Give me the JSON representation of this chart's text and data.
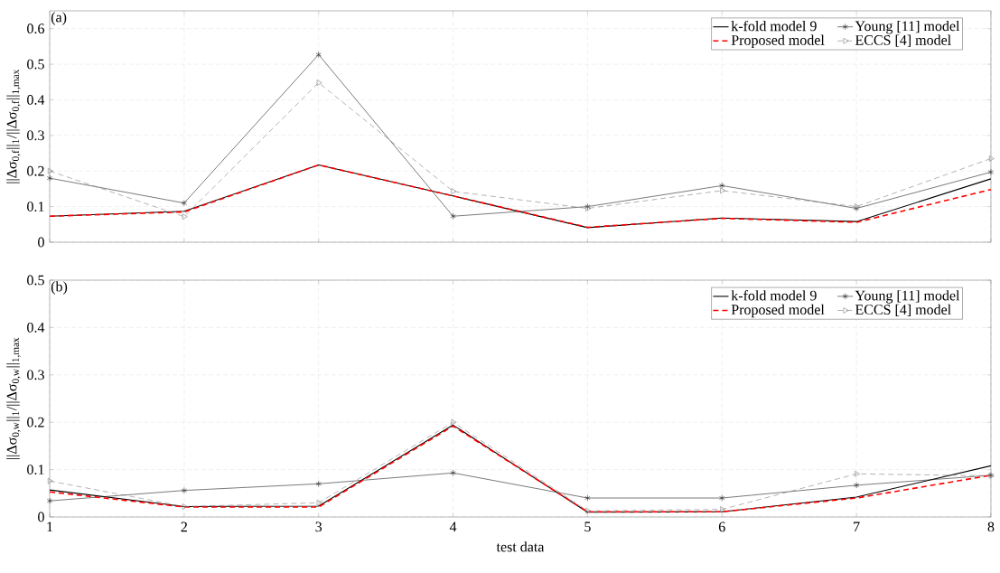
{
  "chart_data": [
    {
      "type": "line",
      "ylabel": "||Δσ$_{0,f}$||$_{1}$/||Δσ$_{0,f}$||$_{1,max}$",
      "annotations": [
        "(a)"
      ],
      "x": [
        1,
        2,
        3,
        4,
        5,
        6,
        7,
        8
      ],
      "xlim": [
        1,
        8
      ],
      "xticks": [
        1,
        2,
        3,
        4,
        5,
        6,
        7,
        8
      ],
      "ylim": [
        0,
        0.65
      ],
      "yticks": [
        0,
        0.1,
        0.2,
        0.3,
        0.4,
        0.5,
        0.6
      ],
      "tick_labels": "y",
      "grid": true,
      "legend": "top right",
      "series": [
        {
          "name": "k-fold model 9",
          "color": "#000000",
          "marker": "none",
          "line_style": "solid",
          "values": [
            0.073,
            0.087,
            0.217,
            0.13,
            0.041,
            0.068,
            0.058,
            0.178
          ]
        },
        {
          "name": "Young [11] model",
          "color": "#222222",
          "marker": "cross",
          "line_style": "solid",
          "values": [
            0.18,
            0.11,
            0.527,
            0.073,
            0.1,
            0.159,
            0.095,
            0.197
          ]
        },
        {
          "name": "Proposed model",
          "color": "#ff0000",
          "marker": "none",
          "line_style": "dashed",
          "values": [
            0.073,
            0.085,
            0.217,
            0.13,
            0.042,
            0.067,
            0.056,
            0.148
          ]
        },
        {
          "name": "ECCS [4] model",
          "color": "#808080",
          "marker": "triangle",
          "line_style": "dashed",
          "values": [
            0.2,
            0.072,
            0.448,
            0.143,
            0.095,
            0.145,
            0.1,
            0.235
          ]
        }
      ]
    },
    {
      "type": "line",
      "xlabel": "test data",
      "ylabel": "||Δσ$_{0,w}$||$_{1}$/||Δσ$_{0,w}$||$_{1,max}$",
      "annotations": [
        "(b)"
      ],
      "x": [
        1,
        2,
        3,
        4,
        5,
        6,
        7,
        8
      ],
      "xlim": [
        1,
        8
      ],
      "xticks": [
        1,
        2,
        3,
        4,
        5,
        6,
        7,
        8
      ],
      "ylim": [
        0,
        0.5
      ],
      "yticks": [
        0,
        0.1,
        0.2,
        0.3,
        0.4,
        0.5
      ],
      "grid": true,
      "legend": "top right",
      "series": [
        {
          "name": "k-fold model 9",
          "color": "#000000",
          "marker": "none",
          "line_style": "solid",
          "values": [
            0.057,
            0.022,
            0.023,
            0.194,
            0.01,
            0.011,
            0.042,
            0.108
          ]
        },
        {
          "name": "Young [11] model",
          "color": "#222222",
          "marker": "cross",
          "line_style": "solid",
          "values": [
            0.034,
            0.056,
            0.07,
            0.093,
            0.04,
            0.04,
            0.067,
            0.088
          ]
        },
        {
          "name": "Proposed model",
          "color": "#ff0000",
          "marker": "none",
          "line_style": "dashed",
          "values": [
            0.053,
            0.021,
            0.021,
            0.192,
            0.011,
            0.011,
            0.04,
            0.088
          ]
        },
        {
          "name": "ECCS [4] model",
          "color": "#808080",
          "marker": "triangle",
          "line_style": "dashed",
          "values": [
            0.076,
            0.022,
            0.03,
            0.2,
            0.013,
            0.016,
            0.091,
            0.087
          ]
        }
      ]
    }
  ]
}
